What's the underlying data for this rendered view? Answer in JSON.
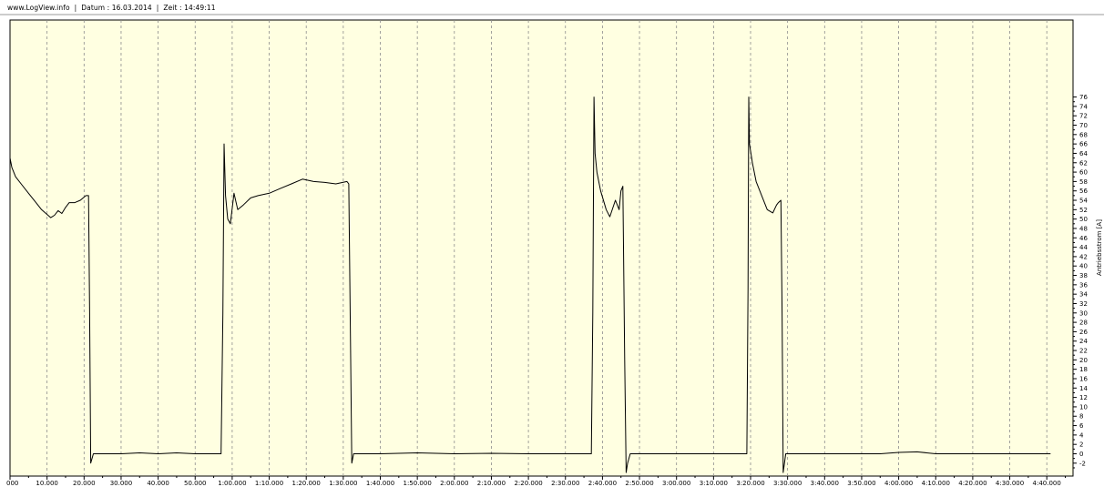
{
  "header": {
    "site": "www.LogView.info",
    "datum": "Datum : 16.03.2014",
    "zeit": "Zeit : 14:49:11",
    "separator": "|"
  },
  "colors": {
    "plot_background": "#ffffe1",
    "line": "#000000",
    "grid": "#8c8c8c"
  },
  "chart_data": {
    "type": "line",
    "title": "",
    "xlabel": "",
    "ylabel": "Antriebsstrom [A]",
    "grid": true,
    "grid_style": "dashed vertical",
    "x_unit": "seconds",
    "xlim": [
      0,
      17580
    ],
    "ylim": [
      -3,
      77
    ],
    "x_tick_labels": [
      "000",
      "10.000",
      "20.000",
      "30.000",
      "40.000",
      "50.000",
      "1:00.000",
      "1:10.000",
      "1:20.000",
      "1:30.000",
      "1:40.000",
      "1:50.000",
      "2:00.000",
      "2:10.000",
      "2:20.000",
      "2:30.000",
      "2:40.000",
      "2:50.000",
      "3:00.000",
      "3:10.000",
      "3:20.000",
      "3:30.000",
      "3:40.000",
      "3:50.000",
      "4:00.000",
      "4:10.000",
      "4:20.000",
      "4:30.000",
      "4:40.000"
    ],
    "y_ticks": [
      -2,
      0,
      2,
      4,
      6,
      8,
      10,
      12,
      14,
      16,
      18,
      20,
      22,
      24,
      26,
      28,
      30,
      32,
      34,
      36,
      38,
      40,
      42,
      44,
      46,
      48,
      50,
      52,
      54,
      56,
      58,
      60,
      62,
      64,
      66,
      68,
      70,
      72,
      74,
      76
    ],
    "series": [
      {
        "name": "",
        "x": [
          0,
          0.5,
          1.5,
          3,
          5,
          7,
          8.5,
          10,
          11,
          12,
          13,
          14,
          15,
          16,
          17.5,
          19,
          20.5,
          21.2,
          21.5,
          21.8,
          22.5,
          25,
          30,
          35,
          40,
          45,
          50,
          55,
          57,
          57.5,
          57.8,
          58.2,
          58.8,
          59.5,
          60.5,
          61.5,
          63,
          65,
          67,
          70,
          73,
          76,
          79,
          82,
          85,
          88,
          91,
          91.5,
          92,
          92.3,
          92.8,
          100,
          110,
          120,
          130,
          140,
          150,
          157,
          157.4,
          157.7,
          158,
          158.5,
          159.5,
          161,
          162,
          163.5,
          164.5,
          165,
          165.5,
          166,
          166.4,
          166.8,
          167.5,
          170,
          180,
          190,
          199,
          199.3,
          199.5,
          199.7,
          200.5,
          201.5,
          203,
          204.5,
          206,
          207,
          207.5,
          208.2,
          208.5,
          208.8,
          209.5,
          215,
          225,
          235,
          240,
          245,
          250,
          255,
          260,
          265,
          270,
          281
        ],
        "y": [
          63,
          61,
          59,
          57.5,
          55.5,
          53.5,
          52,
          51,
          50.3,
          50.8,
          51.8,
          51.2,
          52.5,
          53.5,
          53.5,
          54,
          55,
          55,
          30,
          -2,
          0,
          0,
          0,
          0.2,
          0,
          0.2,
          0,
          0,
          0,
          30,
          66,
          55,
          50,
          49,
          55.5,
          52,
          53,
          54.5,
          55,
          55.5,
          56.5,
          57.5,
          58.5,
          58,
          57.8,
          57.5,
          58,
          57.5,
          20,
          -2,
          0,
          0,
          0.2,
          0,
          0.1,
          0,
          0,
          0,
          30,
          76,
          64,
          60,
          56,
          52,
          50.5,
          54,
          52,
          56,
          57,
          20,
          -4,
          -2,
          0,
          0,
          0,
          0,
          0,
          35,
          76,
          66,
          62,
          58,
          55,
          52,
          51.3,
          53,
          53.5,
          54,
          30,
          -4,
          0,
          0,
          0,
          0,
          0.3,
          0.4,
          0,
          0,
          0,
          0,
          0,
          0
        ]
      }
    ]
  }
}
